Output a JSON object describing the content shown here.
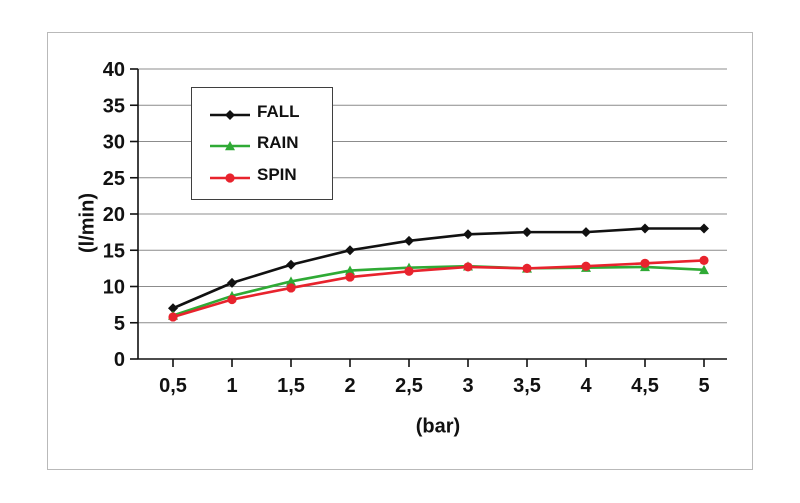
{
  "chart_data": {
    "type": "line",
    "title": "",
    "xlabel": "(bar)",
    "ylabel": "(l/min)",
    "x": [
      0.5,
      1,
      1.5,
      2,
      2.5,
      3,
      3.5,
      4,
      4.5,
      5
    ],
    "x_tick_labels": [
      "0,5",
      "1",
      "1,5",
      "2",
      "2,5",
      "3",
      "3,5",
      "4",
      "4,5",
      "5"
    ],
    "ylim": [
      0,
      40
    ],
    "ytick_step": 5,
    "grid": true,
    "legend_position": "top-left",
    "colors": {
      "grid": "#8c8c8c",
      "axis": "#111111"
    },
    "series": [
      {
        "name": "FALL",
        "color": "#111111",
        "marker": "diamond",
        "values": [
          7.0,
          10.5,
          13.0,
          15.0,
          16.3,
          17.2,
          17.5,
          17.5,
          18.0,
          18.0
        ]
      },
      {
        "name": "RAIN",
        "color": "#2faa35",
        "marker": "triangle",
        "values": [
          6.0,
          8.7,
          10.7,
          12.2,
          12.6,
          12.8,
          12.5,
          12.6,
          12.7,
          12.3
        ]
      },
      {
        "name": "SPIN",
        "color": "#e8232d",
        "marker": "circle",
        "values": [
          5.8,
          8.2,
          9.8,
          11.3,
          12.1,
          12.7,
          12.5,
          12.8,
          13.2,
          13.6
        ]
      }
    ]
  }
}
